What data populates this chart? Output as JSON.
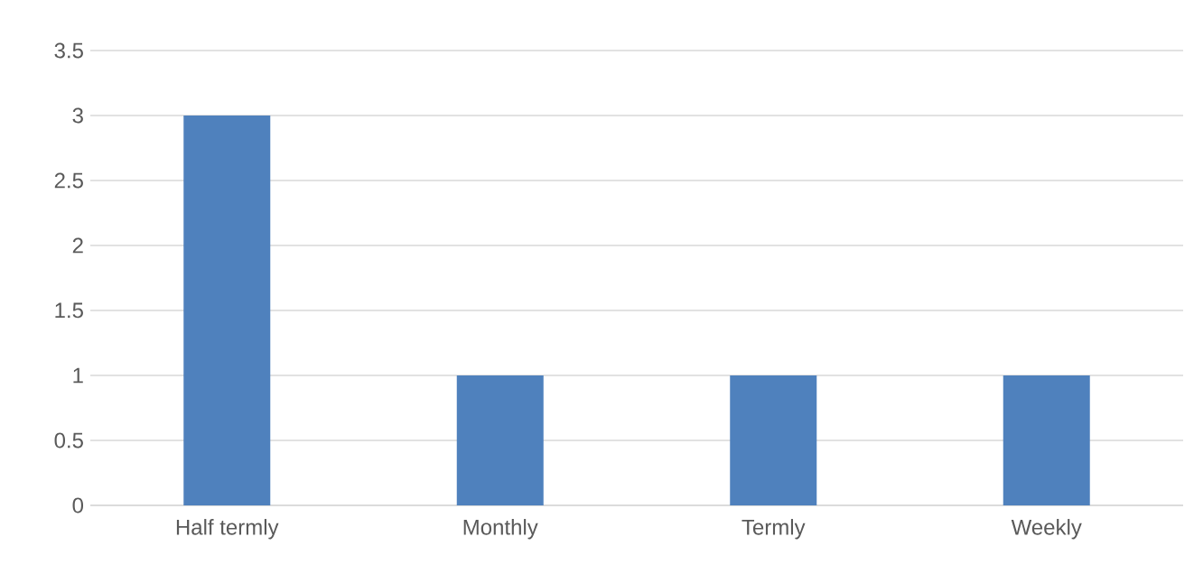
{
  "chart_data": {
    "type": "bar",
    "categories": [
      "Half termly",
      "Monthly",
      "Termly",
      "Weekly"
    ],
    "values": [
      3,
      1,
      1,
      1
    ],
    "color": "#4f81bd",
    "ylim": [
      0,
      3.5
    ],
    "yticks": [
      0,
      0.5,
      1,
      1.5,
      2,
      2.5,
      3,
      3.5
    ],
    "grid": "y"
  }
}
